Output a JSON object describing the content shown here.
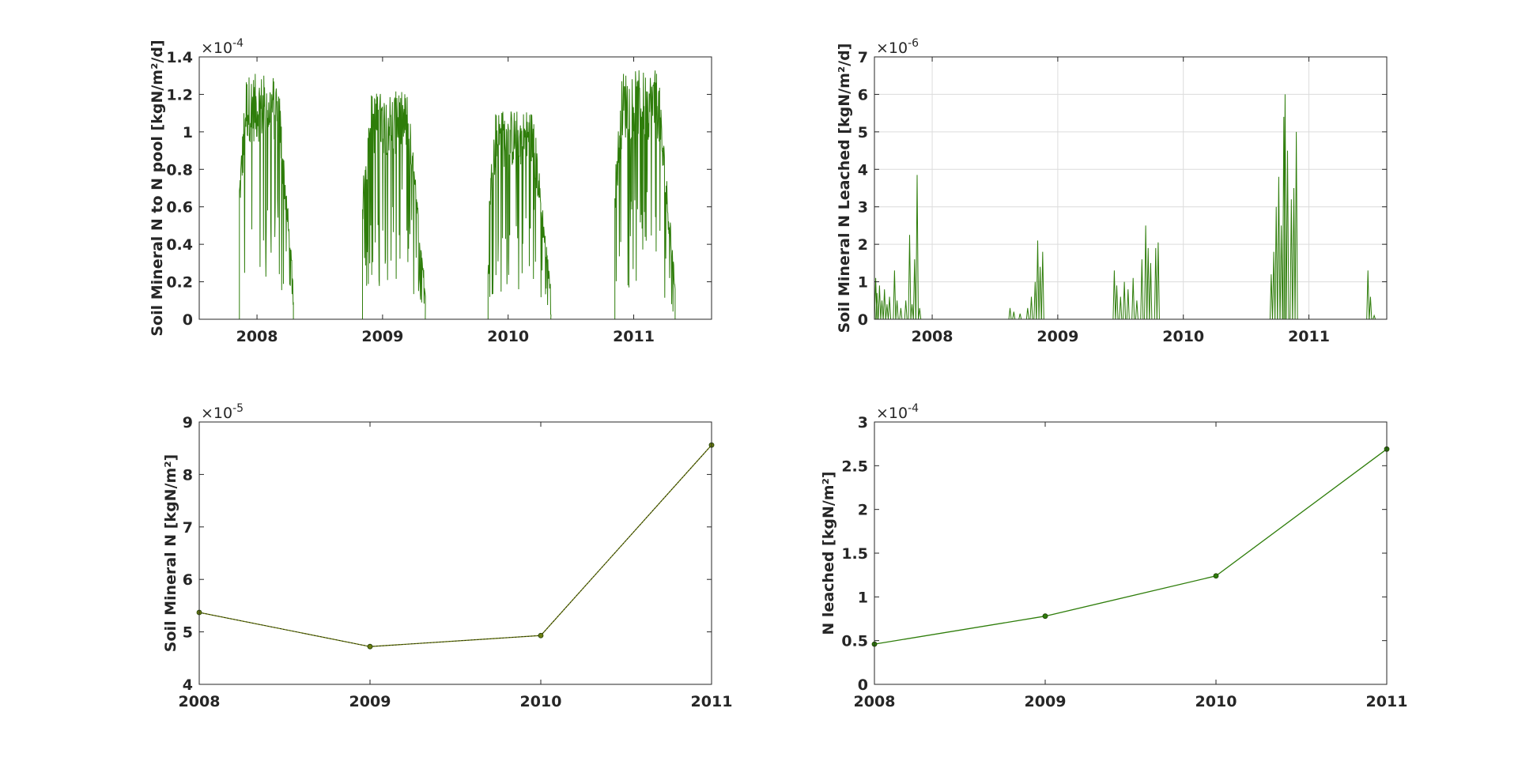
{
  "figure": {
    "background": "#ffffff"
  },
  "colors": {
    "green": "#2e7d0a",
    "olive": "#6b7d10",
    "axis": "#262626",
    "grid": "#dcdcdc"
  },
  "chart_data": [
    {
      "id": "p1",
      "type": "line",
      "ylabel": "Soil Mineral N to N pool [kgN/m²/d]",
      "exponent_base": "×10",
      "exponent_power": "-4",
      "xlim": [
        2007.54,
        2011.62
      ],
      "ylim": [
        0,
        1.4
      ],
      "xticks": [
        2008,
        2009,
        2010,
        2011
      ],
      "xtick_labels": [
        "2008",
        "2009",
        "2010",
        "2011"
      ],
      "yticks": [
        0,
        0.2,
        0.4,
        0.6,
        0.8,
        1,
        1.2,
        1.4
      ],
      "ytick_labels": [
        "0",
        "0.2",
        "0.4",
        "0.6",
        "0.8",
        "1",
        "1.2",
        "1.4"
      ],
      "grid": false,
      "color": "#2e7d0a",
      "seasons": [
        {
          "start": 2007.86,
          "end": 2008.29,
          "peak": 1.38
        },
        {
          "start": 2008.84,
          "end": 2009.34,
          "peak": 1.28
        },
        {
          "start": 2009.84,
          "end": 2010.34,
          "peak": 1.18
        },
        {
          "start": 2010.85,
          "end": 2011.33,
          "peak": 1.4
        }
      ]
    },
    {
      "id": "p2",
      "type": "line",
      "ylabel": "Soil Mineral N Leached [kgN/m²/d]",
      "exponent_base": "×10",
      "exponent_power": "-6",
      "xlim": [
        2007.54,
        2011.62
      ],
      "ylim": [
        0,
        7
      ],
      "xticks": [
        2008,
        2009,
        2010,
        2011
      ],
      "xtick_labels": [
        "2008",
        "2009",
        "2010",
        "2011"
      ],
      "yticks": [
        0,
        1,
        2,
        3,
        4,
        5,
        6,
        7
      ],
      "ytick_labels": [
        "0",
        "1",
        "2",
        "3",
        "4",
        "5",
        "6",
        "7"
      ],
      "grid": true,
      "color": "#2e7d0a",
      "spikes": [
        [
          2007.55,
          1.1
        ],
        [
          2007.56,
          0.7
        ],
        [
          2007.58,
          0.9
        ],
        [
          2007.6,
          0.5
        ],
        [
          2007.62,
          0.8
        ],
        [
          2007.64,
          0.4
        ],
        [
          2007.66,
          0.6
        ],
        [
          2007.7,
          1.3
        ],
        [
          2007.72,
          0.5
        ],
        [
          2007.75,
          0.3
        ],
        [
          2007.79,
          0.5
        ],
        [
          2007.82,
          2.25
        ],
        [
          2007.84,
          0.4
        ],
        [
          2007.86,
          1.6
        ],
        [
          2007.88,
          3.85
        ],
        [
          2007.9,
          0.3
        ],
        [
          2008.62,
          0.3
        ],
        [
          2008.65,
          0.2
        ],
        [
          2008.7,
          0.15
        ],
        [
          2008.76,
          0.3
        ],
        [
          2008.79,
          0.6
        ],
        [
          2008.82,
          1.0
        ],
        [
          2008.84,
          2.1
        ],
        [
          2008.86,
          1.4
        ],
        [
          2008.88,
          1.8
        ],
        [
          2009.45,
          1.3
        ],
        [
          2009.47,
          0.9
        ],
        [
          2009.5,
          0.6
        ],
        [
          2009.53,
          1.0
        ],
        [
          2009.56,
          0.8
        ],
        [
          2009.6,
          1.1
        ],
        [
          2009.63,
          0.5
        ],
        [
          2009.67,
          1.6
        ],
        [
          2009.7,
          2.5
        ],
        [
          2009.72,
          1.9
        ],
        [
          2009.74,
          1.5
        ],
        [
          2009.78,
          1.9
        ],
        [
          2009.8,
          2.05
        ],
        [
          2010.7,
          1.2
        ],
        [
          2010.72,
          1.8
        ],
        [
          2010.74,
          3.0
        ],
        [
          2010.76,
          3.8
        ],
        [
          2010.78,
          2.5
        ],
        [
          2010.8,
          5.4
        ],
        [
          2010.81,
          6.0
        ],
        [
          2010.83,
          4.5
        ],
        [
          2010.86,
          3.2
        ],
        [
          2010.88,
          3.5
        ],
        [
          2010.9,
          5.0
        ],
        [
          2011.47,
          1.3
        ],
        [
          2011.49,
          0.6
        ],
        [
          2011.52,
          0.1
        ]
      ]
    },
    {
      "id": "p3",
      "type": "line",
      "ylabel": "Soil Mineral N [kgN/m²]",
      "exponent_base": "×10",
      "exponent_power": "-5",
      "xlim": [
        2008,
        2011
      ],
      "ylim": [
        4,
        9
      ],
      "xticks": [
        2008,
        2009,
        2010,
        2011
      ],
      "xtick_labels": [
        "2008",
        "2009",
        "2010",
        "2011"
      ],
      "yticks": [
        4,
        5,
        6,
        7,
        8,
        9
      ],
      "ytick_labels": [
        "4",
        "5",
        "6",
        "7",
        "8",
        "9"
      ],
      "grid": false,
      "color": "#6b7d10",
      "x": [
        2008,
        2009,
        2010,
        2011
      ],
      "y": [
        5.37,
        4.72,
        4.93,
        8.56
      ]
    },
    {
      "id": "p4",
      "type": "line",
      "ylabel": "N leached [kgN/m²]",
      "exponent_base": "×10",
      "exponent_power": "-4",
      "xlim": [
        2008,
        2011
      ],
      "ylim": [
        0,
        3
      ],
      "xticks": [
        2008,
        2009,
        2010,
        2011
      ],
      "xtick_labels": [
        "2008",
        "2009",
        "2010",
        "2011"
      ],
      "yticks": [
        0,
        0.5,
        1,
        1.5,
        2,
        2.5,
        3
      ],
      "ytick_labels": [
        "0",
        "0.5",
        "1",
        "1.5",
        "2",
        "2.5",
        "3"
      ],
      "grid": false,
      "color": "#2e7d0a",
      "x": [
        2008,
        2009,
        2010,
        2011
      ],
      "y": [
        0.46,
        0.78,
        1.24,
        2.69
      ]
    }
  ]
}
